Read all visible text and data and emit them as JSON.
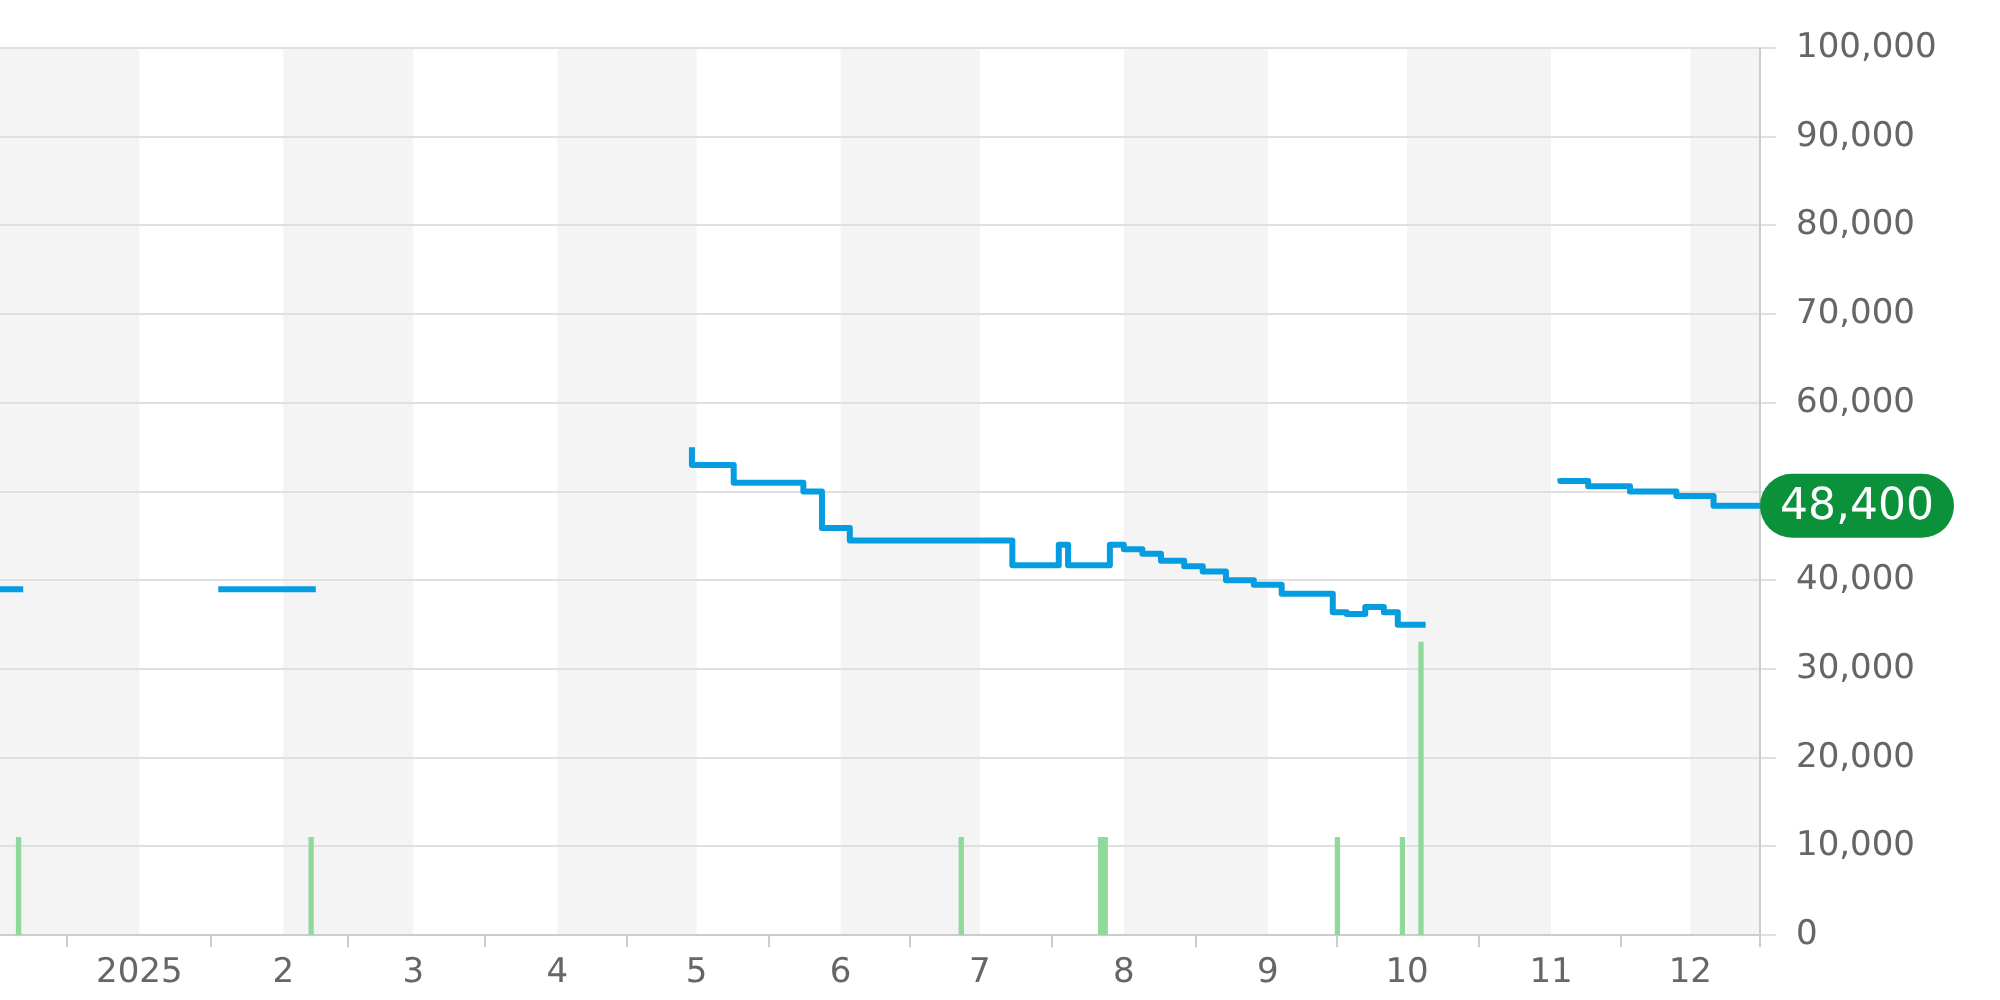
{
  "chart_data": {
    "type": "step",
    "series": [
      {
        "color": "#069de0",
        "x": [
          "2024-12-02",
          "2024-12-07",
          "2024-12-20",
          "2025-01-18",
          "2025-02-08",
          "2025-03-15",
          "2025-04-30",
          "2025-05-09",
          "2025-05-24",
          "2025-05-28",
          "2025-06-03",
          "2025-07-08",
          "2025-07-18",
          "2025-07-20",
          "2025-07-29",
          "2025-08-01",
          "2025-08-05",
          "2025-08-09",
          "2025-08-14",
          "2025-08-18",
          "2025-08-23",
          "2025-08-29",
          "2025-09-04",
          "2025-09-15",
          "2025-09-18",
          "2025-09-22",
          "2025-09-26",
          "2025-09-29",
          "2025-10-03",
          "2025-10-05",
          "2025-10-20",
          "2025-11-03",
          "2025-11-09",
          "2025-11-18",
          "2025-11-28",
          "2025-12-06",
          "2025-12-13",
          "2025-12-16"
        ],
        "values": [
          39000,
          39000,
          null,
          39000,
          39000,
          null,
          55000,
          53000,
          51000,
          50000,
          45900,
          44500,
          41700,
          44000,
          41700,
          44000,
          43500,
          43000,
          42200,
          41600,
          41000,
          40000,
          39500,
          38500,
          36400,
          36200,
          37000,
          36400,
          35000,
          35000,
          null,
          51500,
          51200,
          50600,
          50000,
          49500,
          48400,
          48400
        ]
      },
      {
        "type": "bar",
        "color": "#8fd99b",
        "x": [
          "2024-12-06",
          "2025-02-07",
          "2025-06-27",
          "2025-07-27",
          "2025-07-28",
          "2025-09-16",
          "2025-09-30",
          "2025-10-04"
        ],
        "values": [
          11000,
          11000,
          11000,
          11000,
          11000,
          11000,
          11000,
          33000
        ]
      }
    ],
    "xlim": [
      "2024-12-02",
      "2025-12-16"
    ],
    "xticks": [
      {
        "value": "2025-01-01",
        "label": "2025"
      },
      {
        "value": "2025-02-01",
        "label": "2"
      },
      {
        "value": "2025-03-01",
        "label": "3"
      },
      {
        "value": "2025-04-01",
        "label": "4"
      },
      {
        "value": "2025-05-01",
        "label": "5"
      },
      {
        "value": "2025-06-01",
        "label": "6"
      },
      {
        "value": "2025-07-01",
        "label": "7"
      },
      {
        "value": "2025-08-01",
        "label": "8"
      },
      {
        "value": "2025-09-01",
        "label": "9"
      },
      {
        "value": "2025-10-01",
        "label": "10"
      },
      {
        "value": "2025-11-01",
        "label": "11"
      },
      {
        "value": "2025-12-01",
        "label": "12"
      }
    ],
    "ylim": [
      0,
      100000
    ],
    "yticks": [
      {
        "value": 0,
        "label": "0"
      },
      {
        "value": 10000,
        "label": "10,000"
      },
      {
        "value": 20000,
        "label": "20,000"
      },
      {
        "value": 30000,
        "label": "30,000"
      },
      {
        "value": 40000,
        "label": "40,000"
      },
      {
        "value": 50000,
        "label": null
      },
      {
        "value": 60000,
        "label": "60,000"
      },
      {
        "value": 70000,
        "label": "70,000"
      },
      {
        "value": 80000,
        "label": "80,000"
      },
      {
        "value": 90000,
        "label": "90,000"
      },
      {
        "value": 100000,
        "label": "100,000"
      }
    ],
    "grid": "y",
    "bands": [
      {
        "axis": "x",
        "from": "2024-12-02",
        "to": "2025-01-01",
        "color": "#f4f4f4"
      },
      {
        "axis": "x",
        "from": "2025-02-01",
        "to": "2025-03-01",
        "color": "#f4f4f4"
      },
      {
        "axis": "x",
        "from": "2025-04-01",
        "to": "2025-05-01",
        "color": "#f4f4f4"
      },
      {
        "axis": "x",
        "from": "2025-06-01",
        "to": "2025-07-01",
        "color": "#f4f4f4"
      },
      {
        "axis": "x",
        "from": "2025-08-01",
        "to": "2025-09-01",
        "color": "#f4f4f4"
      },
      {
        "axis": "x",
        "from": "2025-10-01",
        "to": "2025-11-01",
        "color": "#f4f4f4"
      },
      {
        "axis": "x",
        "from": "2025-12-01",
        "to": "2025-12-16",
        "color": "#f4f4f4"
      }
    ],
    "annotations": [
      {
        "text": "48,400",
        "x": "2025-12-16",
        "y": 48400
      }
    ],
    "legend": false
  }
}
